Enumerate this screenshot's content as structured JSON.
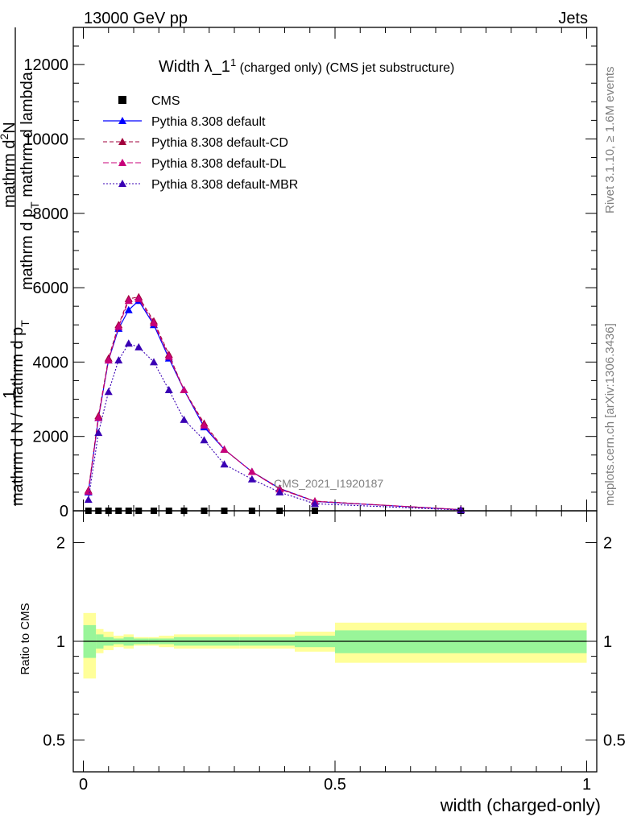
{
  "header": {
    "left": "13000 GeV pp",
    "right": "Jets"
  },
  "side": {
    "rivet": "Rivet 3.1.10, ≥ 1.6M events",
    "mcplots": "mcplots.cern.ch [arXiv:1306.3436]"
  },
  "main_plot": {
    "title_prefix": "Width λ_1",
    "title_sup": "1",
    "title_suffix": " (charged only) (CMS jet substructure)",
    "ylabel_top": "mathrm d",
    "ylabel_top_sup": "2",
    "ylabel_top_suffix": "N",
    "ylabel_bottom": "mathrm d p",
    "ylabel_bottom_sub": "T",
    "ylabel_bottom_suffix": " mathrm d lambda",
    "ylabel_factor_num": "1",
    "ylabel_factor_den": "mathrm d N / mathrm d p",
    "ylabel_factor_den_sub": "T",
    "watermark": "CMS_2021_I1920187",
    "yticks": [
      "0",
      "2000",
      "4000",
      "6000",
      "8000",
      "10000",
      "12000"
    ]
  },
  "ratio_plot": {
    "ylabel": "Ratio to CMS",
    "yticks": [
      "0.5",
      "1",
      "2"
    ]
  },
  "xaxis": {
    "label": "width (charged-only)",
    "ticks": [
      "0",
      "0.5",
      "1"
    ]
  },
  "legend": [
    {
      "name": "CMS",
      "color": "#000000"
    },
    {
      "name": "Pythia 8.308 default",
      "color": "#0000ff"
    },
    {
      "name": "Pythia 8.308 default-CD",
      "color": "#a2003d"
    },
    {
      "name": "Pythia 8.308 default-DL",
      "color": "#c8007a"
    },
    {
      "name": "Pythia 8.308 default-MBR",
      "color": "#3a00b4"
    }
  ],
  "chart_data": {
    "type": "line",
    "x": [
      0.01,
      0.03,
      0.05,
      0.07,
      0.09,
      0.11,
      0.14,
      0.17,
      0.2,
      0.24,
      0.28,
      0.335,
      0.39,
      0.46,
      0.75
    ],
    "ylim": [
      0,
      13000
    ],
    "xlim": [
      -0.02,
      1.02
    ],
    "series": [
      {
        "name": "CMS",
        "values": [
          0,
          0,
          0,
          0,
          0,
          0,
          0,
          0,
          0,
          0,
          0,
          0,
          0,
          0,
          0
        ]
      },
      {
        "name": "Pythia 8.308 default",
        "values": [
          500,
          2500,
          4050,
          4900,
          5400,
          5650,
          5000,
          4100,
          3250,
          2250,
          1650,
          1050,
          600,
          250,
          30
        ]
      },
      {
        "name": "Pythia 8.308 default-CD",
        "values": [
          550,
          2550,
          4100,
          5000,
          5700,
          5750,
          5100,
          4200,
          3250,
          2350,
          1650,
          1050,
          600,
          260,
          30
        ]
      },
      {
        "name": "Pythia 8.308 default-DL",
        "values": [
          520,
          2500,
          4050,
          4950,
          5650,
          5700,
          5050,
          4150,
          3250,
          2300,
          1650,
          1050,
          580,
          255,
          30
        ]
      },
      {
        "name": "Pythia 8.308 default-MBR",
        "values": [
          300,
          2100,
          3200,
          4050,
          4500,
          4400,
          4000,
          3250,
          2450,
          1900,
          1250,
          850,
          500,
          190,
          20
        ]
      }
    ],
    "ratio": {
      "ylim_log": [
        0.4,
        2.5
      ],
      "band_edges": [
        0.0,
        0.025,
        0.04,
        0.06,
        0.08,
        0.1,
        0.13,
        0.15,
        0.18,
        0.22,
        0.26,
        0.31,
        0.36,
        0.42,
        0.5,
        1.0
      ],
      "stat_up": [
        1.12,
        1.05,
        1.03,
        1.02,
        1.03,
        1.02,
        1.02,
        1.02,
        1.03,
        1.03,
        1.03,
        1.03,
        1.03,
        1.04,
        1.08
      ],
      "stat_down": [
        0.89,
        0.95,
        0.97,
        0.98,
        0.97,
        0.98,
        0.98,
        0.98,
        0.97,
        0.97,
        0.97,
        0.97,
        0.97,
        0.96,
        0.92
      ],
      "tot_up": [
        1.22,
        1.09,
        1.07,
        1.04,
        1.05,
        1.03,
        1.03,
        1.04,
        1.05,
        1.05,
        1.05,
        1.05,
        1.05,
        1.07,
        1.14
      ],
      "tot_down": [
        0.77,
        0.92,
        0.94,
        0.96,
        0.95,
        0.97,
        0.97,
        0.96,
        0.95,
        0.95,
        0.95,
        0.95,
        0.95,
        0.93,
        0.86
      ],
      "stat_color": "#99f599",
      "tot_color": "#ffff99"
    }
  }
}
